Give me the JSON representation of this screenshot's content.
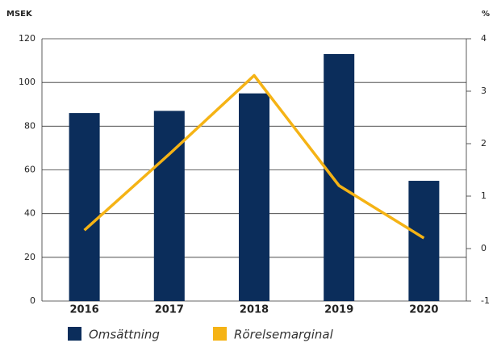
{
  "chart_data": {
    "type": "bar-line",
    "y_label": "MSEK",
    "y2_label": "%",
    "categories": [
      "2016",
      "2017",
      "2018",
      "2019",
      "2020"
    ],
    "series": [
      {
        "name": "Omsättning",
        "type": "bar",
        "color": "#0b2d5b",
        "values": [
          86,
          87,
          95,
          113,
          55
        ]
      },
      {
        "name": "Rörelsemarginal",
        "type": "line",
        "axis": "y2",
        "color": "#f5b315",
        "values": [
          0.35,
          1.8,
          3.3,
          1.2,
          0.2
        ]
      }
    ],
    "ylim": [
      0,
      120
    ],
    "yticks": [
      0,
      20,
      40,
      60,
      80,
      100,
      120
    ],
    "y2lim": [
      -1,
      4
    ],
    "y2ticks": [
      -1,
      0,
      1,
      2,
      3,
      4
    ],
    "grid": true,
    "legend": "bottom"
  }
}
